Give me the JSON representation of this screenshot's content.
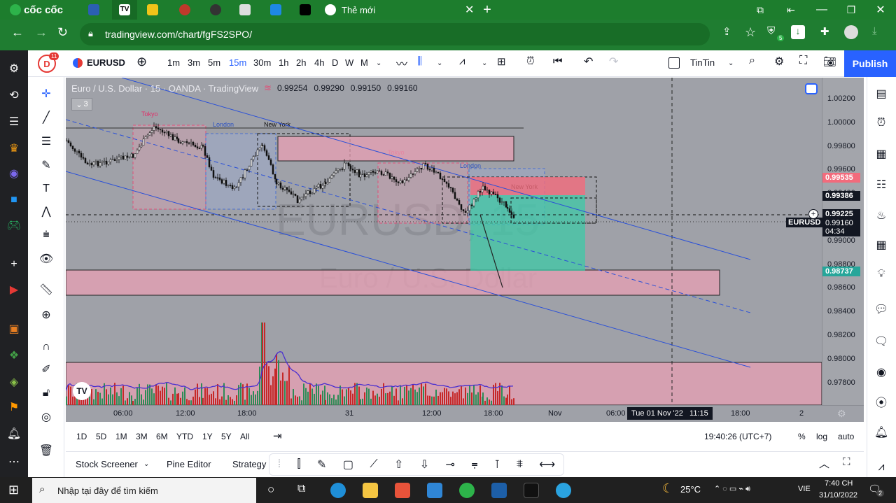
{
  "browser": {
    "brand": "cốc cốc",
    "active_tab_title": "Thẻ mới",
    "url": "tradingview.com/chart/fgFS2SPO/",
    "ext_badge": "5"
  },
  "toolbar": {
    "avatar_letter": "D",
    "avatar_badge": "11",
    "symbol": "EURUSD",
    "intervals": [
      "1m",
      "3m",
      "5m",
      "15m",
      "30m",
      "1h",
      "2h",
      "4h",
      "D",
      "W",
      "M"
    ],
    "active_interval": "15m",
    "layout_name": "TinTin",
    "publish": "Publish"
  },
  "legend": {
    "title": "Euro / U.S. Dollar · 15 · OANDA · TradingView",
    "values": [
      "0.99254",
      "0.99290",
      "0.99150",
      "0.99160"
    ],
    "collapse_count": "3"
  },
  "watermark": {
    "symbol": "EURUSD, 15",
    "name": "Euro / U.S. Dollar"
  },
  "session_labels": {
    "tokyo": "Tokyo",
    "london": "London",
    "newyork": "New York"
  },
  "price_axis": {
    "ticks": [
      "1.00200",
      "1.00000",
      "0.99800",
      "0.99600",
      "0.99400",
      "0.99200",
      "0.99000",
      "0.98800",
      "0.98600",
      "0.98400",
      "0.98200",
      "0.98000",
      "0.97800"
    ],
    "badges": {
      "red": "0.99535",
      "black": "0.99386",
      "last": "0.99225",
      "cur": "0.99160",
      "countdown": "04:34",
      "green": "0.98737"
    },
    "symbol_tag": "EURUSD"
  },
  "time_axis": {
    "ticks": [
      "06:00",
      "12:00",
      "18:00",
      "31",
      "12:00",
      "18:00",
      "Nov",
      "06:00",
      "18:00",
      "2"
    ],
    "crosshair_label": "Tue 01 Nov '22   11:15"
  },
  "range_bar": {
    "ranges": [
      "1D",
      "5D",
      "1M",
      "3M",
      "6M",
      "YTD",
      "1Y",
      "5Y",
      "All"
    ],
    "clock": "19:40:26 (UTC+7)",
    "pct": "%",
    "log": "log",
    "auto": "auto"
  },
  "bottom": {
    "tabs": [
      "Stock Screener",
      "Pine Editor",
      "Strategy"
    ]
  },
  "taskbar": {
    "search_placeholder": "Nhập tại đây để tìm kiếm",
    "temperature": "25°C",
    "lang": "VIE",
    "time": "7:40 CH",
    "date": "31/10/2022",
    "notif_count": "2"
  },
  "colors": {
    "accent": "#2962ff",
    "up": "#26a69a",
    "down": "#ef5350",
    "zone": "#e8a0b4",
    "chart_bg": "#9fa1a8"
  }
}
